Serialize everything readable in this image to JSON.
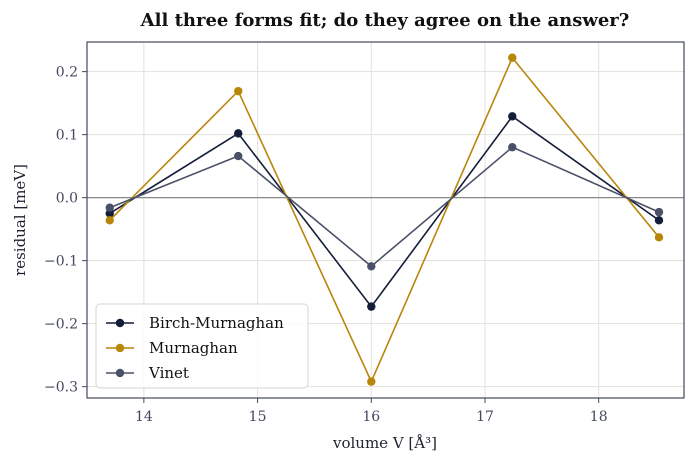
{
  "chart_data": {
    "type": "line",
    "title": "All three forms fit; do they agree on the answer?",
    "xlabel": "volume  V  [Å³]",
    "ylabel": "residual  [meV]",
    "xlim": [
      13.5,
      18.75
    ],
    "ylim": [
      -0.318,
      0.247
    ],
    "xticks": [
      14,
      15,
      16,
      17,
      18
    ],
    "yticks": [
      -0.3,
      -0.2,
      -0.1,
      0.0,
      0.1,
      0.2
    ],
    "ytick_labels": [
      "−0.3",
      "−0.2",
      "−0.1",
      "0.0",
      "0.1",
      "0.2"
    ],
    "grid": true,
    "zero_line": true,
    "legend_position": "lower-left",
    "x": [
      13.7,
      14.83,
      16.0,
      17.24,
      18.53
    ],
    "series": [
      {
        "name": "Birch-Murnaghan",
        "color": "#141d3a",
        "values": [
          -0.025,
          0.102,
          -0.173,
          0.129,
          -0.036
        ]
      },
      {
        "name": "Murnaghan",
        "color": "#b8860b",
        "values": [
          -0.036,
          0.169,
          -0.292,
          0.222,
          -0.063
        ]
      },
      {
        "name": "Vinet",
        "color": "#4a5068",
        "values": [
          -0.016,
          0.066,
          -0.109,
          0.08,
          -0.023
        ]
      }
    ]
  }
}
